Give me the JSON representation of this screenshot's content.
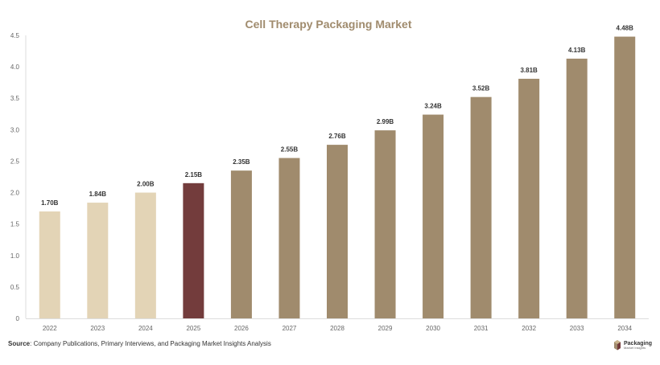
{
  "chart_data": {
    "type": "bar",
    "title": "Cell Therapy Packaging Market",
    "categories": [
      "2022",
      "2023",
      "2024",
      "2025",
      "2026",
      "2027",
      "2028",
      "2029",
      "2030",
      "2031",
      "2032",
      "2033",
      "2034"
    ],
    "values": [
      1.7,
      1.84,
      2.0,
      2.15,
      2.35,
      2.55,
      2.76,
      2.99,
      3.24,
      3.52,
      3.81,
      4.13,
      4.48
    ],
    "data_labels": [
      "1.70B",
      "1.84B",
      "2.00B",
      "2.15B",
      "2.35B",
      "2.55B",
      "2.76B",
      "2.99B",
      "3.24B",
      "3.52B",
      "3.81B",
      "4.13B",
      "4.48B"
    ],
    "yticks": [
      "0",
      "0.5",
      "1.0",
      "1.5",
      "2.0",
      "2.5",
      "3.0",
      "3.5",
      "4.0",
      "4.5"
    ],
    "ylim": [
      0,
      4.5
    ],
    "xlabel": "",
    "ylabel": "",
    "grid": false,
    "colors": {
      "historical": "#e3d4b6",
      "base_year": "#733c3c",
      "forecast": "#a08b6d",
      "title": "#a08b6d",
      "axis": "#dddddd"
    },
    "bar_color_groups": [
      "historical",
      "historical",
      "historical",
      "base_year",
      "forecast",
      "forecast",
      "forecast",
      "forecast",
      "forecast",
      "forecast",
      "forecast",
      "forecast",
      "forecast"
    ]
  },
  "footer": {
    "source_label": "Source",
    "source_text": ": Company Publications, Primary Interviews, and Packaging Market Insights Analysis"
  },
  "logo": {
    "name": "Packaging",
    "tagline": "Market Insights"
  }
}
